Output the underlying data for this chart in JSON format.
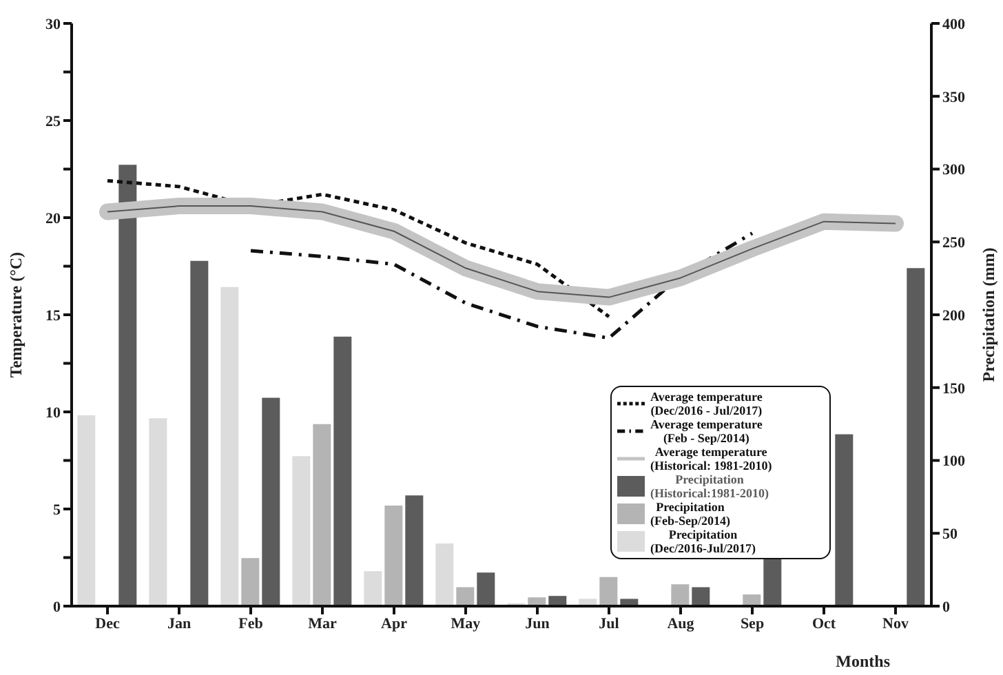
{
  "chart_data": {
    "type": "bar",
    "xlabel": "Months",
    "ylabel": "Temperature (°C)",
    "y2label": "Precipitation (mm)",
    "categories": [
      "Dec",
      "Jan",
      "Feb",
      "Mar",
      "Apr",
      "May",
      "Jun",
      "Jul",
      "Aug",
      "Sep",
      "Oct",
      "Nov"
    ],
    "series": [
      {
        "name": "Average temperature\n(Dec/2016 - Jul/2017)",
        "type": "line",
        "line_style": "dotted",
        "color": "#111111",
        "values": [
          21.9,
          21.6,
          20.6,
          21.2,
          20.4,
          18.7,
          17.6,
          14.9,
          null,
          null,
          null,
          null
        ]
      },
      {
        "name": "Average temperature\n(Feb - Sep/2014)",
        "type": "line",
        "line_style": "dashed",
        "color": "#111111",
        "values": [
          null,
          null,
          18.3,
          18.0,
          17.6,
          15.6,
          14.4,
          13.8,
          17.0,
          19.2,
          null,
          null
        ]
      },
      {
        "name": "Average temperature\n(Historical: 1981-2010)",
        "type": "line",
        "line_style": "solid",
        "color": "#c4c4c4",
        "values": [
          20.3,
          20.6,
          20.6,
          20.3,
          19.3,
          17.4,
          16.2,
          15.9,
          16.9,
          18.4,
          19.8,
          19.7
        ]
      },
      {
        "name": "Precipitation\n(Historical:1981-2010)",
        "axis": "y2",
        "color": "#5c5c5c",
        "values": [
          303,
          237,
          143,
          185,
          76,
          23,
          7,
          5,
          13,
          33,
          118,
          232
        ]
      },
      {
        "name": "Precipitation\n(Feb-Sep/2014)",
        "axis": "y2",
        "color": "#b4b4b4",
        "values": [
          null,
          null,
          33,
          125,
          69,
          13,
          6,
          20,
          15,
          8,
          null,
          null
        ]
      },
      {
        "name": "Precipitation\n(Dec/2016-Jul/2017)",
        "axis": "y2",
        "color": "#dcdcdc",
        "values": [
          131,
          129,
          219,
          103,
          24,
          43,
          2,
          5,
          null,
          null,
          null,
          null
        ]
      }
    ],
    "ylim": [
      0,
      30
    ],
    "yticks": [
      0,
      {
        "value": 2.5,
        "label": null
      },
      5,
      {
        "value": 7.5,
        "label": null
      },
      10,
      {
        "value": 12.5,
        "label": null
      },
      15,
      {
        "value": 17.5,
        "label": null
      },
      20,
      {
        "value": 22.5,
        "label": null
      },
      25,
      {
        "value": 27.5,
        "label": null
      },
      30
    ],
    "y2lim": [
      0,
      400
    ],
    "y2ticks": [
      0,
      50,
      100,
      150,
      200,
      250,
      300,
      350,
      400
    ],
    "grid": false,
    "legend": "bottom right"
  }
}
